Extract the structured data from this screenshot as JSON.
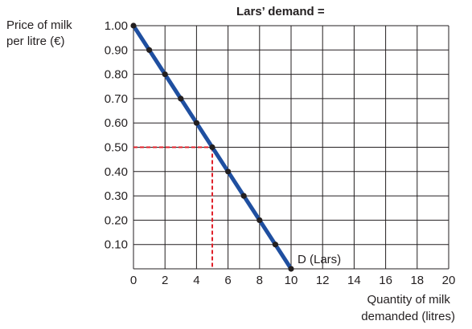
{
  "chart_data": {
    "type": "line",
    "title": "Lars’ demand =",
    "ylabel": [
      "Price of milk",
      "per litre (€)"
    ],
    "xlabel": [
      "Quantity of milk",
      "demanded (litres)"
    ],
    "xlim": [
      0,
      20
    ],
    "ylim": [
      0,
      1.0
    ],
    "x_ticks": [
      "0",
      "2",
      "4",
      "6",
      "8",
      "10",
      "12",
      "14",
      "16",
      "18",
      "20"
    ],
    "y_ticks": [
      "0.10",
      "0.20",
      "0.30",
      "0.40",
      "0.50",
      "0.60",
      "0.70",
      "0.80",
      "0.90",
      "1.00"
    ],
    "grid": true,
    "series": [
      {
        "name": "D (Lars)",
        "color": "#1f4fa0",
        "marker_color": "#231f20",
        "x": [
          0,
          1,
          2,
          3,
          4,
          5,
          6,
          7,
          8,
          9,
          10
        ],
        "y": [
          1.0,
          0.9,
          0.8,
          0.7,
          0.6,
          0.5,
          0.4,
          0.3,
          0.2,
          0.1,
          0.0
        ]
      }
    ],
    "reference_point": {
      "x": 5,
      "y": 0.5,
      "color": "#e0202a",
      "style": "dashed"
    },
    "curve_label": "D (Lars)"
  }
}
